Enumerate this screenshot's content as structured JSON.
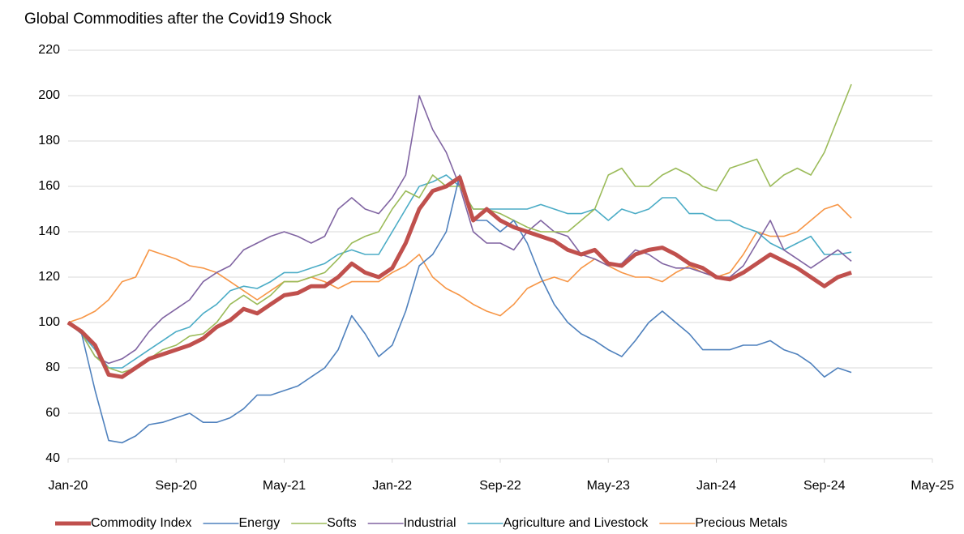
{
  "chart_data": {
    "type": "line",
    "title": "Global Commodities after the Covid19 Shock",
    "x": [
      "2020-01",
      "2020-02",
      "2020-03",
      "2020-04",
      "2020-05",
      "2020-06",
      "2020-07",
      "2020-08",
      "2020-09",
      "2020-10",
      "2020-11",
      "2020-12",
      "2021-01",
      "2021-02",
      "2021-03",
      "2021-04",
      "2021-05",
      "2021-06",
      "2021-07",
      "2021-08",
      "2021-09",
      "2021-10",
      "2021-11",
      "2021-12",
      "2022-01",
      "2022-02",
      "2022-03",
      "2022-04",
      "2022-05",
      "2022-06",
      "2022-07",
      "2022-08",
      "2022-09",
      "2022-10",
      "2022-11",
      "2022-12",
      "2023-01",
      "2023-02",
      "2023-03",
      "2023-04",
      "2023-05",
      "2023-06",
      "2023-07",
      "2023-08",
      "2023-09",
      "2023-10",
      "2023-11",
      "2023-12",
      "2024-01",
      "2024-02",
      "2024-03",
      "2024-04",
      "2024-05",
      "2024-06",
      "2024-07",
      "2024-08",
      "2024-09",
      "2024-10",
      "2024-11"
    ],
    "series": [
      {
        "name": "Commodity Index",
        "color": "#c0504d",
        "values": [
          100,
          96,
          90,
          77,
          76,
          80,
          84,
          86,
          88,
          90,
          93,
          98,
          101,
          106,
          104,
          108,
          112,
          113,
          116,
          116,
          120,
          126,
          122,
          120,
          124,
          135,
          150,
          158,
          160,
          164,
          145,
          150,
          145,
          142,
          140,
          138,
          136,
          132,
          130,
          132,
          126,
          125,
          130,
          132,
          133,
          130,
          126,
          124,
          120,
          119,
          122,
          126,
          130,
          127,
          124,
          120,
          116,
          120,
          122
        ]
      },
      {
        "name": "Energy",
        "color": "#4f81bd",
        "values": [
          100,
          95,
          70,
          48,
          47,
          50,
          55,
          56,
          58,
          60,
          56,
          56,
          58,
          62,
          68,
          68,
          70,
          72,
          76,
          80,
          88,
          103,
          95,
          85,
          90,
          105,
          125,
          130,
          140,
          165,
          145,
          145,
          140,
          145,
          135,
          120,
          108,
          100,
          95,
          92,
          88,
          85,
          92,
          100,
          105,
          100,
          95,
          88,
          88,
          88,
          90,
          90,
          92,
          88,
          86,
          82,
          76,
          80,
          78
        ]
      },
      {
        "name": "Softs",
        "color": "#9bbb59",
        "values": [
          100,
          95,
          85,
          80,
          78,
          80,
          84,
          88,
          90,
          94,
          95,
          100,
          108,
          112,
          108,
          112,
          118,
          118,
          120,
          122,
          128,
          135,
          138,
          140,
          150,
          158,
          155,
          165,
          160,
          160,
          150,
          150,
          148,
          145,
          142,
          140,
          140,
          140,
          145,
          150,
          165,
          168,
          160,
          160,
          165,
          168,
          165,
          160,
          158,
          168,
          170,
          172,
          160,
          165,
          168,
          165,
          175,
          190,
          205
        ]
      },
      {
        "name": "Industrial",
        "color": "#8064a2",
        "values": [
          100,
          95,
          85,
          82,
          84,
          88,
          96,
          102,
          106,
          110,
          118,
          122,
          125,
          132,
          135,
          138,
          140,
          138,
          135,
          138,
          150,
          155,
          150,
          148,
          155,
          165,
          200,
          185,
          175,
          160,
          140,
          135,
          135,
          132,
          140,
          145,
          140,
          138,
          130,
          128,
          125,
          126,
          132,
          130,
          126,
          124,
          124,
          122,
          120,
          120,
          125,
          135,
          145,
          132,
          128,
          124,
          128,
          132,
          127
        ]
      },
      {
        "name": "Agriculture and Livestock",
        "color": "#4bacc6",
        "values": [
          100,
          95,
          88,
          80,
          80,
          84,
          88,
          92,
          96,
          98,
          104,
          108,
          114,
          116,
          115,
          118,
          122,
          122,
          124,
          126,
          130,
          132,
          130,
          130,
          140,
          150,
          160,
          162,
          165,
          160,
          150,
          150,
          150,
          150,
          150,
          152,
          150,
          148,
          148,
          150,
          145,
          150,
          148,
          150,
          155,
          155,
          148,
          148,
          145,
          145,
          142,
          140,
          135,
          132,
          135,
          138,
          130,
          130,
          131
        ]
      },
      {
        "name": "Precious Metals",
        "color": "#f79646",
        "values": [
          100,
          102,
          105,
          110,
          118,
          120,
          132,
          130,
          128,
          125,
          124,
          122,
          118,
          114,
          110,
          114,
          118,
          118,
          120,
          118,
          115,
          118,
          118,
          118,
          122,
          125,
          130,
          120,
          115,
          112,
          108,
          105,
          103,
          108,
          115,
          118,
          120,
          118,
          124,
          128,
          125,
          122,
          120,
          120,
          118,
          122,
          125,
          122,
          120,
          122,
          130,
          140,
          138,
          138,
          140,
          145,
          150,
          152,
          146
        ]
      }
    ],
    "xlim": [
      "2020-01",
      "2025-05"
    ],
    "xticks": [
      {
        "value": "2020-01",
        "label": "Jan-20"
      },
      {
        "value": "2020-09",
        "label": "Sep-20"
      },
      {
        "value": "2021-05",
        "label": "May-21"
      },
      {
        "value": "2022-01",
        "label": "Jan-22"
      },
      {
        "value": "2022-09",
        "label": "Sep-22"
      },
      {
        "value": "2023-05",
        "label": "May-23"
      },
      {
        "value": "2024-01",
        "label": "Jan-24"
      },
      {
        "value": "2024-09",
        "label": "Sep-24"
      },
      {
        "value": "2025-05",
        "label": "May-25"
      }
    ],
    "ylim": [
      40,
      220
    ],
    "yticks": [
      40,
      60,
      80,
      100,
      120,
      140,
      160,
      180,
      200,
      220
    ],
    "grid": true,
    "legend": "bottom"
  }
}
